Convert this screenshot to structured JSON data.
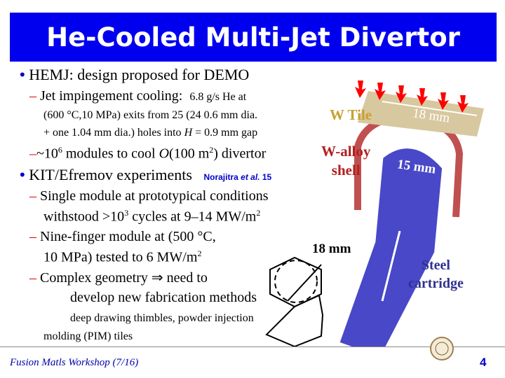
{
  "title": "He-Cooled Multi-Jet Divertor",
  "bullets": {
    "hemj": "HEMJ:  design proposed for DEMO",
    "jet_main": "Jet impingement cooling:",
    "jet_small": "6.8 g/s He at",
    "jet_line2": "(600 °C,10 MPa) exits from 25 (24 0.6 mm dia.",
    "jet_line3_a": "+ one 1.04 mm dia.) holes into ",
    "jet_line3_h": "H",
    "jet_line3_b": " = 0.9 mm gap",
    "modules_a": "~10",
    "modules_exp": "6",
    "modules_b": " modules to cool ",
    "modules_o": "O",
    "modules_c": "(100 m",
    "modules_exp2": "2",
    "modules_d": ") divertor",
    "kit": "KIT/Efremov experiments",
    "ref_a": "Norajitra ",
    "ref_b": "et al.",
    "ref_c": " 15",
    "single_1": "Single module at prototypical conditions",
    "single_2a": "withstood >10",
    "single_2exp": "3",
    "single_2b": " cycles at 9–14 MW/m",
    "single_2exp2": "2",
    "nine_1": "Nine-finger module at (500 °C,",
    "nine_2a": "10 MPa) tested to 6 MW/m",
    "nine_2exp": "2",
    "complex_1": "Complex geometry ⇒ need to",
    "complex_2": "develop new fabrication methods",
    "deep_1": "deep drawing thimbles, powder injection",
    "deep_2": "molding (PIM) tiles"
  },
  "diagram": {
    "w_tile": "W Tile",
    "w_alloy_1": "W-alloy",
    "w_alloy_2": "shell",
    "dim_18_top": "18 mm",
    "dim_15": "15 mm",
    "dim_18_hex": "18 mm",
    "steel_1": "Steel",
    "steel_2": "cartridge",
    "colors": {
      "tile": "#d8c8a0",
      "shell": "#c05050",
      "cartridge": "#4848c8",
      "arrows": "#ff0000",
      "w_tile_label": "#c8a030",
      "w_alloy_label": "#b02020",
      "steel_label": "#303090"
    }
  },
  "footer": {
    "text": "Fusion Matls Workshop (7/16)",
    "page": "4"
  }
}
